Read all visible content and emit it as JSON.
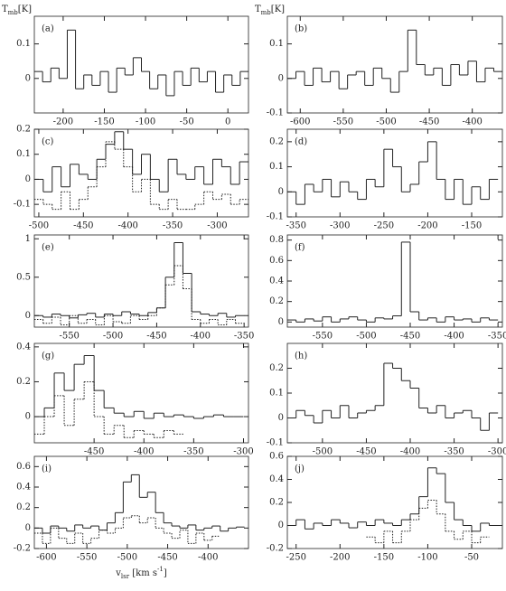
{
  "chart_data": [
    {
      "type": "line",
      "step": true,
      "label": "(a)",
      "ylabel": {
        "main": "T",
        "sub": "mb",
        "rest": "[K]"
      },
      "xlim": [
        -235,
        25
      ],
      "xticks": [
        -200,
        -150,
        -100,
        -50,
        0
      ],
      "ylim": [
        -0.1,
        0.18
      ],
      "yticks": [
        0,
        0.1
      ],
      "x": [
        -230,
        -220,
        -210,
        -200,
        -190,
        -180,
        -170,
        -160,
        -150,
        -140,
        -130,
        -120,
        -110,
        -100,
        -90,
        -80,
        -70,
        -60,
        -50,
        -40,
        -30,
        -20,
        -10,
        0,
        10,
        20
      ],
      "series": [
        {
          "color": "#222222",
          "style": "solid",
          "values": [
            0.02,
            -0.01,
            0.03,
            0.0,
            0.14,
            -0.03,
            0.01,
            -0.02,
            0.02,
            -0.04,
            0.03,
            0.01,
            0.06,
            0.02,
            -0.03,
            0.01,
            -0.05,
            0.02,
            -0.02,
            0.03,
            -0.01,
            0.02,
            -0.04,
            0.01,
            -0.02,
            0.02
          ]
        }
      ]
    },
    {
      "type": "line",
      "step": true,
      "label": "(b)",
      "ylabel": {
        "main": "T",
        "sub": "mb",
        "rest": "[K]"
      },
      "xlim": [
        -615,
        -365
      ],
      "xticks": [
        -600,
        -550,
        -500,
        -450,
        -400
      ],
      "ylim": [
        -0.1,
        0.18
      ],
      "yticks": [
        -0.1,
        0,
        0.1
      ],
      "x": [
        -610,
        -600,
        -590,
        -580,
        -570,
        -560,
        -550,
        -540,
        -530,
        -520,
        -510,
        -500,
        -490,
        -480,
        -470,
        -460,
        -450,
        -440,
        -430,
        -420,
        -410,
        -400,
        -390,
        -380,
        -370
      ],
      "series": [
        {
          "color": "#222222",
          "style": "solid",
          "values": [
            0.0,
            0.02,
            -0.02,
            0.03,
            -0.01,
            0.02,
            -0.03,
            0.01,
            0.02,
            -0.02,
            0.03,
            0.0,
            -0.04,
            0.02,
            0.14,
            0.04,
            0.01,
            0.03,
            -0.02,
            0.04,
            0.01,
            0.05,
            -0.01,
            0.03,
            0.02
          ]
        }
      ]
    },
    {
      "type": "line",
      "step": true,
      "label": "(c)",
      "xlim": [
        -505,
        -265
      ],
      "xticks": [
        -500,
        -450,
        -400,
        -350,
        -300
      ],
      "ylim": [
        -0.15,
        0.2
      ],
      "yticks": [
        -0.1,
        0,
        0.1,
        0.2
      ],
      "x": [
        -500,
        -490,
        -480,
        -470,
        -460,
        -450,
        -440,
        -430,
        -420,
        -410,
        -400,
        -390,
        -380,
        -370,
        -360,
        -350,
        -340,
        -330,
        -320,
        -310,
        -300,
        -290,
        -280,
        -270
      ],
      "series": [
        {
          "color": "#222222",
          "style": "solid",
          "values": [
            0.0,
            -0.05,
            0.05,
            -0.03,
            0.06,
            0.02,
            0.0,
            0.08,
            0.14,
            0.19,
            0.12,
            0.02,
            0.1,
            0.0,
            -0.05,
            0.08,
            0.02,
            0.0,
            0.05,
            -0.02,
            0.08,
            0.05,
            -0.02,
            0.07
          ]
        },
        {
          "color": "#222222",
          "style": "dotted",
          "values": [
            -0.08,
            -0.1,
            -0.12,
            -0.05,
            -0.12,
            -0.08,
            -0.03,
            0.05,
            0.15,
            0.12,
            0.05,
            -0.05,
            0.0,
            -0.1,
            -0.12,
            -0.08,
            -0.12,
            -0.12,
            -0.1,
            -0.05,
            -0.08,
            -0.06,
            -0.1,
            -0.08
          ]
        }
      ]
    },
    {
      "type": "line",
      "step": true,
      "label": "(d)",
      "xlim": [
        -360,
        -115
      ],
      "xticks": [
        -350,
        -300,
        -250,
        -200,
        -150
      ],
      "ylim": [
        -0.1,
        0.25
      ],
      "yticks": [
        -0.1,
        0,
        0.1,
        0.2
      ],
      "x": [
        -355,
        -345,
        -335,
        -325,
        -315,
        -305,
        -295,
        -285,
        -275,
        -265,
        -255,
        -245,
        -235,
        -225,
        -215,
        -205,
        -195,
        -185,
        -175,
        -165,
        -155,
        -145,
        -135,
        -125
      ],
      "series": [
        {
          "color": "#222222",
          "style": "solid",
          "values": [
            0.0,
            -0.05,
            0.03,
            0.0,
            0.05,
            -0.02,
            0.04,
            0.0,
            -0.03,
            0.05,
            0.02,
            0.17,
            0.1,
            0.0,
            0.03,
            0.12,
            0.2,
            0.05,
            -0.03,
            0.05,
            -0.05,
            0.02,
            -0.03,
            0.05
          ]
        }
      ]
    },
    {
      "type": "line",
      "step": true,
      "label": "(e)",
      "xlim": [
        -590,
        -345
      ],
      "xticks": [
        -550,
        -500,
        -450,
        -400,
        -350
      ],
      "ylim": [
        -0.15,
        1.05
      ],
      "yticks": [
        0,
        0.5,
        1
      ],
      "x": [
        -585,
        -575,
        -565,
        -555,
        -545,
        -535,
        -525,
        -515,
        -505,
        -495,
        -485,
        -475,
        -465,
        -455,
        -445,
        -435,
        -425,
        -415,
        -405,
        -395,
        -385,
        -375,
        -365,
        -355
      ],
      "series": [
        {
          "color": "#222222",
          "style": "solid",
          "values": [
            0.0,
            -0.02,
            0.02,
            0.0,
            -0.03,
            0.01,
            0.03,
            -0.02,
            0.02,
            0.0,
            0.05,
            0.02,
            0.0,
            0.04,
            0.1,
            0.5,
            0.95,
            0.55,
            0.05,
            0.02,
            0.0,
            0.03,
            -0.02,
            0.0
          ]
        },
        {
          "color": "#222222",
          "style": "dotted",
          "values": [
            -0.05,
            -0.1,
            -0.02,
            -0.12,
            0.0,
            -0.1,
            -0.05,
            -0.12,
            0.0,
            -0.08,
            -0.1,
            0.0,
            -0.05,
            0.0,
            0.1,
            0.4,
            0.65,
            0.35,
            -0.05,
            -0.1,
            -0.05,
            -0.12,
            -0.05,
            -0.1
          ]
        }
      ]
    },
    {
      "type": "line",
      "step": true,
      "label": "(f)",
      "xlim": [
        -590,
        -345
      ],
      "xticks": [
        -550,
        -500,
        -450,
        -400,
        -350
      ],
      "ylim": [
        -0.05,
        0.85
      ],
      "yticks": [
        0,
        0.2,
        0.4,
        0.6,
        0.8
      ],
      "x": [
        -585,
        -575,
        -565,
        -555,
        -545,
        -535,
        -525,
        -515,
        -505,
        -495,
        -485,
        -475,
        -465,
        -455,
        -445,
        -435,
        -425,
        -415,
        -405,
        -395,
        -385,
        -375,
        -365,
        -355
      ],
      "series": [
        {
          "color": "#222222",
          "style": "solid",
          "values": [
            0.02,
            0.0,
            0.03,
            0.01,
            0.05,
            0.0,
            0.03,
            0.05,
            0.02,
            0.0,
            0.04,
            0.03,
            0.06,
            0.78,
            0.1,
            0.02,
            0.04,
            0.0,
            0.05,
            0.02,
            0.03,
            0.0,
            0.04,
            0.02
          ]
        }
      ]
    },
    {
      "type": "line",
      "step": true,
      "label": "(g)",
      "xlim": [
        -510,
        -295
      ],
      "xticks": [
        -450,
        -400,
        -350,
        -300
      ],
      "ylim": [
        -0.15,
        0.42
      ],
      "yticks": [
        0,
        0.2,
        0.4
      ],
      "x": [
        -505,
        -495,
        -485,
        -475,
        -465,
        -455,
        -445,
        -435,
        -425,
        -415,
        -405,
        -395,
        -385,
        -375,
        -365,
        -355,
        -345,
        -335,
        -325,
        -315,
        -305
      ],
      "series": [
        {
          "color": "#222222",
          "style": "solid",
          "values": [
            0.0,
            0.05,
            0.25,
            0.15,
            0.3,
            0.35,
            0.15,
            0.05,
            0.02,
            0.0,
            0.03,
            -0.01,
            0.02,
            0.0,
            0.01,
            0.0,
            -0.01,
            0.0,
            0.01,
            0.0,
            0.0
          ]
        },
        {
          "color": "#222222",
          "style": "dotted",
          "values": [
            -0.1,
            0.0,
            0.12,
            -0.05,
            0.1,
            0.2,
            0.0,
            -0.1,
            -0.05,
            -0.12,
            -0.08,
            -0.1,
            -0.12,
            -0.08,
            -0.1,
            null,
            null,
            null,
            null,
            null,
            null
          ]
        }
      ]
    },
    {
      "type": "line",
      "step": true,
      "label": "(h)",
      "xlim": [
        -540,
        -295
      ],
      "xticks": [
        -500,
        -450,
        -400,
        -350,
        -300
      ],
      "ylim": [
        -0.1,
        0.3
      ],
      "yticks": [
        -0.1,
        0,
        0.1,
        0.2
      ],
      "x": [
        -535,
        -525,
        -515,
        -505,
        -495,
        -485,
        -475,
        -465,
        -455,
        -445,
        -435,
        -425,
        -415,
        -405,
        -395,
        -385,
        -375,
        -365,
        -355,
        -345,
        -335,
        -325,
        -315,
        -305
      ],
      "series": [
        {
          "color": "#222222",
          "style": "solid",
          "values": [
            0.0,
            0.03,
            0.01,
            -0.02,
            0.03,
            0.0,
            0.05,
            0.0,
            0.02,
            0.03,
            0.05,
            0.22,
            0.2,
            0.15,
            0.12,
            0.04,
            0.02,
            0.05,
            0.0,
            0.02,
            0.03,
            0.0,
            -0.05,
            0.02
          ]
        }
      ]
    },
    {
      "type": "line",
      "step": true,
      "label": "(i)",
      "xlabel": {
        "main": "v",
        "sub": "lsr",
        "rest": " [km s",
        "sup": "-1",
        "end": "]"
      },
      "xlim": [
        -615,
        -350
      ],
      "xticks": [
        -600,
        -550,
        -500,
        -450,
        -400
      ],
      "ylim": [
        -0.2,
        0.7
      ],
      "yticks": [
        -0.2,
        0,
        0.2,
        0.4,
        0.6
      ],
      "x": [
        -610,
        -600,
        -590,
        -580,
        -570,
        -560,
        -550,
        -540,
        -530,
        -520,
        -510,
        -500,
        -490,
        -480,
        -470,
        -460,
        -450,
        -440,
        -430,
        -420,
        -410,
        -400,
        -390,
        -380,
        -370,
        -360
      ],
      "series": [
        {
          "color": "#222222",
          "style": "solid",
          "values": [
            0.0,
            -0.05,
            0.02,
            0.0,
            -0.03,
            0.03,
            0.0,
            0.02,
            -0.02,
            0.05,
            0.15,
            0.45,
            0.52,
            0.3,
            0.35,
            0.15,
            0.05,
            0.02,
            0.0,
            0.03,
            -0.02,
            0.0,
            0.02,
            -0.03,
            0.0,
            0.01
          ]
        },
        {
          "color": "#222222",
          "style": "dotted",
          "values": [
            -0.05,
            -0.15,
            0.0,
            -0.1,
            -0.15,
            -0.05,
            -0.15,
            -0.1,
            -0.02,
            -0.05,
            0.0,
            0.1,
            0.12,
            0.05,
            0.1,
            0.0,
            -0.05,
            -0.1,
            -0.02,
            -0.15,
            -0.05,
            -0.12,
            -0.08,
            null,
            null,
            null
          ]
        }
      ]
    },
    {
      "type": "line",
      "step": true,
      "label": "(j)",
      "xlim": [
        -260,
        -15
      ],
      "xticks": [
        -250,
        -200,
        -150,
        -100,
        -50
      ],
      "ylim": [
        -0.2,
        0.6
      ],
      "yticks": [
        -0.2,
        0,
        0.2,
        0.4,
        0.6
      ],
      "x": [
        -255,
        -245,
        -235,
        -225,
        -215,
        -205,
        -195,
        -185,
        -175,
        -165,
        -155,
        -145,
        -135,
        -125,
        -115,
        -105,
        -95,
        -85,
        -75,
        -65,
        -55,
        -45,
        -35,
        -25
      ],
      "series": [
        {
          "color": "#222222",
          "style": "solid",
          "values": [
            0.0,
            0.05,
            -0.03,
            0.02,
            0.0,
            0.05,
            0.02,
            -0.02,
            0.03,
            0.0,
            0.05,
            0.02,
            0.0,
            0.05,
            0.1,
            0.25,
            0.5,
            0.45,
            0.2,
            0.05,
            0.0,
            -0.05,
            0.02,
            0.0
          ]
        },
        {
          "color": "#222222",
          "style": "dotted",
          "values": [
            null,
            null,
            null,
            null,
            null,
            null,
            null,
            null,
            null,
            -0.1,
            -0.15,
            -0.05,
            -0.15,
            -0.05,
            0.05,
            0.15,
            0.22,
            0.1,
            -0.05,
            -0.12,
            -0.05,
            -0.15,
            -0.1,
            null
          ]
        }
      ]
    }
  ]
}
